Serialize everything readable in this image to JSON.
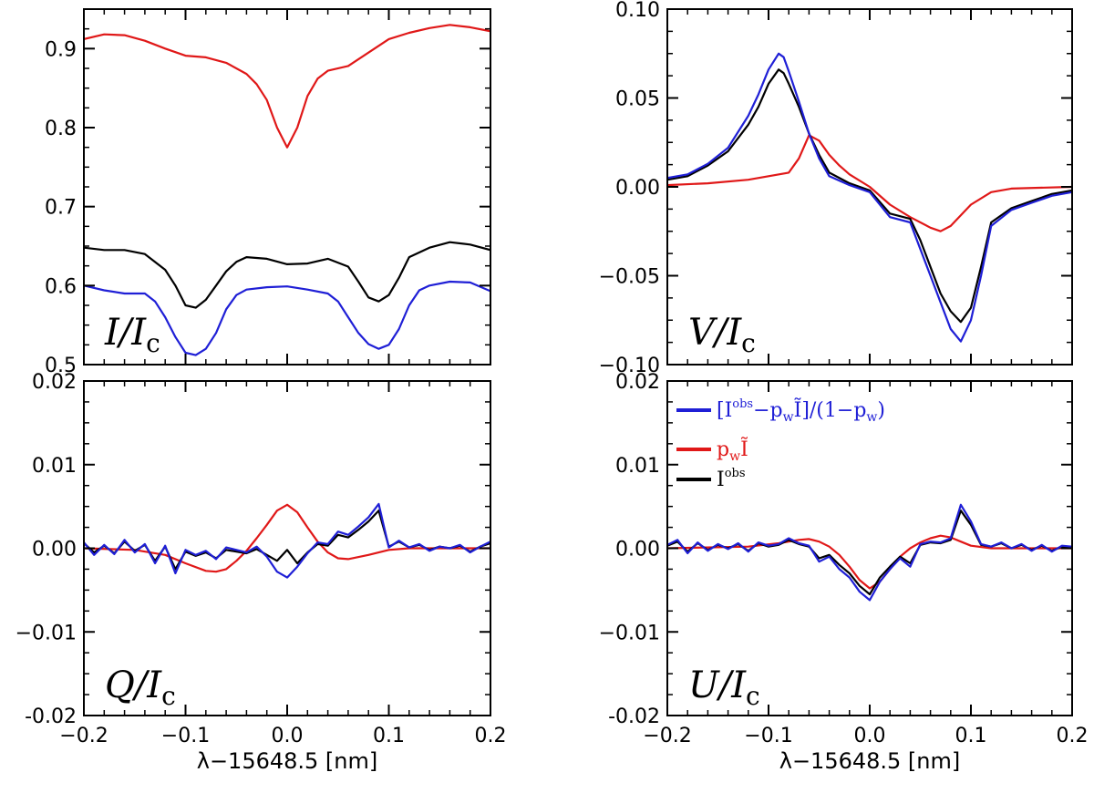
{
  "colors": {
    "blue": "#1f1fd6",
    "red": "#e01818",
    "black": "#000000"
  },
  "xlabel": "λ−15648.5 [nm]",
  "legend": [
    {
      "label": "[Iobs−pwĨ]/(1−pw)",
      "parts": [
        "[I",
        "obs",
        "−p",
        "w",
        "Ĩ]/(1−p",
        "w",
        ")"
      ],
      "color": "#1f1fd6"
    },
    {
      "label": "pwĨ",
      "parts": [
        "p",
        "w",
        "Ĩ"
      ],
      "color": "#e01818"
    },
    {
      "label": "Iobs",
      "parts": [
        "I",
        "obs"
      ],
      "color": "#000000"
    }
  ],
  "chart_data": [
    {
      "id": "I",
      "type": "line",
      "label": "I/Ic",
      "label_main": "I/I",
      "label_sub": "c",
      "xlim": [
        -0.2,
        0.2
      ],
      "ylim": [
        0.5,
        0.95
      ],
      "xticks": [
        -0.2,
        -0.1,
        0.0,
        0.1,
        0.2
      ],
      "xtick_labels": [
        "−0.2",
        "−0.1",
        "0.0",
        "0.1",
        "0.2"
      ],
      "yticks": [
        0.5,
        0.6,
        0.7,
        0.8,
        0.9
      ],
      "ytick_labels": [
        "0.5",
        "0.6",
        "0.7",
        "0.8",
        "0.9"
      ],
      "series": [
        {
          "name": "pwĨ",
          "color": "#e01818",
          "x": [
            -0.2,
            -0.18,
            -0.16,
            -0.14,
            -0.12,
            -0.1,
            -0.08,
            -0.06,
            -0.04,
            -0.03,
            -0.02,
            -0.01,
            0.0,
            0.01,
            0.02,
            0.03,
            0.04,
            0.06,
            0.08,
            0.1,
            0.12,
            0.14,
            0.16,
            0.18,
            0.2
          ],
          "y": [
            0.912,
            0.918,
            0.917,
            0.91,
            0.9,
            0.891,
            0.889,
            0.882,
            0.868,
            0.855,
            0.835,
            0.8,
            0.775,
            0.8,
            0.84,
            0.862,
            0.872,
            0.878,
            0.895,
            0.912,
            0.92,
            0.926,
            0.93,
            0.927,
            0.922
          ]
        },
        {
          "name": "Iobs",
          "color": "#000000",
          "x": [
            -0.2,
            -0.18,
            -0.16,
            -0.14,
            -0.12,
            -0.11,
            -0.1,
            -0.09,
            -0.08,
            -0.07,
            -0.06,
            -0.05,
            -0.04,
            -0.02,
            0.0,
            0.02,
            0.04,
            0.06,
            0.07,
            0.08,
            0.09,
            0.1,
            0.11,
            0.12,
            0.14,
            0.16,
            0.18,
            0.2
          ],
          "y": [
            0.648,
            0.645,
            0.645,
            0.64,
            0.62,
            0.6,
            0.575,
            0.572,
            0.582,
            0.6,
            0.618,
            0.63,
            0.636,
            0.634,
            0.627,
            0.628,
            0.634,
            0.624,
            0.605,
            0.585,
            0.58,
            0.588,
            0.61,
            0.636,
            0.648,
            0.655,
            0.652,
            0.645
          ]
        },
        {
          "name": "[Iobs−pwĨ]/(1−pw)",
          "color": "#1f1fd6",
          "x": [
            -0.2,
            -0.18,
            -0.16,
            -0.14,
            -0.13,
            -0.12,
            -0.11,
            -0.1,
            -0.09,
            -0.08,
            -0.07,
            -0.06,
            -0.05,
            -0.04,
            -0.02,
            0.0,
            0.02,
            0.04,
            0.05,
            0.06,
            0.07,
            0.08,
            0.09,
            0.1,
            0.11,
            0.12,
            0.13,
            0.14,
            0.16,
            0.18,
            0.2
          ],
          "y": [
            0.6,
            0.594,
            0.59,
            0.59,
            0.58,
            0.56,
            0.535,
            0.515,
            0.512,
            0.52,
            0.54,
            0.57,
            0.588,
            0.595,
            0.598,
            0.599,
            0.595,
            0.59,
            0.58,
            0.56,
            0.54,
            0.526,
            0.52,
            0.525,
            0.545,
            0.575,
            0.594,
            0.6,
            0.605,
            0.604,
            0.593
          ]
        }
      ]
    },
    {
      "id": "V",
      "type": "line",
      "label": "V/Ic",
      "label_main": "V/I",
      "label_sub": "c",
      "xlim": [
        -0.2,
        0.2
      ],
      "ylim": [
        -0.1,
        0.1
      ],
      "xticks": [
        -0.2,
        -0.1,
        0.0,
        0.1,
        0.2
      ],
      "xtick_labels": [
        "−0.2",
        "−0.1",
        "0.0",
        "0.1",
        "0.2"
      ],
      "yticks": [
        -0.1,
        -0.05,
        0.0,
        0.05,
        0.1
      ],
      "ytick_labels": [
        "−0.10",
        "−0.05",
        "0.00",
        "0.05",
        "0.10"
      ],
      "series": [
        {
          "name": "pwĨ",
          "color": "#e01818",
          "x": [
            -0.2,
            -0.16,
            -0.12,
            -0.1,
            -0.08,
            -0.07,
            -0.06,
            -0.05,
            -0.04,
            -0.03,
            -0.02,
            0.0,
            0.02,
            0.04,
            0.06,
            0.07,
            0.08,
            0.1,
            0.12,
            0.14,
            0.2
          ],
          "y": [
            0.001,
            0.002,
            0.004,
            0.006,
            0.008,
            0.016,
            0.029,
            0.026,
            0.018,
            0.012,
            0.007,
            0.0,
            -0.01,
            -0.017,
            -0.023,
            -0.025,
            -0.022,
            -0.01,
            -0.003,
            -0.001,
            0.0
          ]
        },
        {
          "name": "Iobs",
          "color": "#000000",
          "x": [
            -0.2,
            -0.18,
            -0.16,
            -0.14,
            -0.12,
            -0.11,
            -0.1,
            -0.09,
            -0.085,
            -0.08,
            -0.07,
            -0.06,
            -0.05,
            -0.04,
            -0.02,
            0.0,
            0.02,
            0.04,
            0.05,
            0.06,
            0.07,
            0.08,
            0.09,
            0.1,
            0.11,
            0.12,
            0.14,
            0.16,
            0.18,
            0.2
          ],
          "y": [
            0.004,
            0.006,
            0.012,
            0.02,
            0.035,
            0.045,
            0.058,
            0.066,
            0.064,
            0.058,
            0.045,
            0.03,
            0.018,
            0.008,
            0.002,
            -0.002,
            -0.015,
            -0.018,
            -0.03,
            -0.045,
            -0.06,
            -0.07,
            -0.076,
            -0.068,
            -0.045,
            -0.02,
            -0.012,
            -0.008,
            -0.004,
            -0.002
          ]
        },
        {
          "name": "[Iobs−pwĨ]/(1−pw)",
          "color": "#1f1fd6",
          "x": [
            -0.2,
            -0.18,
            -0.16,
            -0.14,
            -0.12,
            -0.11,
            -0.1,
            -0.09,
            -0.085,
            -0.08,
            -0.07,
            -0.06,
            -0.05,
            -0.04,
            -0.02,
            0.0,
            0.02,
            0.04,
            0.05,
            0.06,
            0.07,
            0.08,
            0.09,
            0.1,
            0.11,
            0.12,
            0.14,
            0.16,
            0.18,
            0.2
          ],
          "y": [
            0.005,
            0.007,
            0.013,
            0.022,
            0.04,
            0.052,
            0.066,
            0.075,
            0.073,
            0.065,
            0.048,
            0.03,
            0.016,
            0.006,
            0.001,
            -0.003,
            -0.017,
            -0.02,
            -0.035,
            -0.05,
            -0.065,
            -0.08,
            -0.087,
            -0.075,
            -0.05,
            -0.022,
            -0.013,
            -0.009,
            -0.005,
            -0.003
          ]
        }
      ]
    },
    {
      "id": "Q",
      "type": "line",
      "label": "Q/Ic",
      "label_main": "Q/I",
      "label_sub": "c",
      "xlim": [
        -0.2,
        0.2
      ],
      "ylim": [
        -0.02,
        0.02
      ],
      "xticks": [
        -0.2,
        -0.1,
        0.0,
        0.1,
        0.2
      ],
      "xtick_labels": [
        "−0.2",
        "−0.1",
        "0.0",
        "0.1",
        "0.2"
      ],
      "yticks": [
        -0.02,
        -0.01,
        0.0,
        0.01,
        0.02
      ],
      "ytick_labels": [
        "-0.02",
        "−0.01",
        "0.00",
        "0.01",
        "0.02"
      ],
      "series": [
        {
          "name": "pwĨ",
          "color": "#e01818",
          "x": [
            -0.2,
            -0.15,
            -0.12,
            -0.1,
            -0.08,
            -0.07,
            -0.06,
            -0.05,
            -0.04,
            -0.03,
            -0.02,
            -0.01,
            0.0,
            0.01,
            0.02,
            0.03,
            0.04,
            0.05,
            0.06,
            0.08,
            0.1,
            0.12,
            0.15,
            0.2
          ],
          "y": [
            0.0,
            -0.0002,
            -0.0008,
            -0.0018,
            -0.0027,
            -0.0028,
            -0.0025,
            -0.0015,
            -0.0003,
            0.0012,
            0.0028,
            0.0045,
            0.0052,
            0.0043,
            0.0025,
            0.0008,
            -0.0005,
            -0.0012,
            -0.0013,
            -0.0008,
            -0.0002,
            0.0,
            0.0,
            0.0
          ]
        },
        {
          "name": "Iobs",
          "color": "#000000",
          "x": [
            -0.2,
            -0.19,
            -0.18,
            -0.17,
            -0.16,
            -0.15,
            -0.14,
            -0.13,
            -0.12,
            -0.11,
            -0.1,
            -0.09,
            -0.08,
            -0.07,
            -0.06,
            -0.05,
            -0.04,
            -0.03,
            -0.02,
            -0.01,
            0.0,
            0.01,
            0.02,
            0.03,
            0.04,
            0.05,
            0.06,
            0.07,
            0.08,
            0.09,
            0.1,
            0.11,
            0.12,
            0.13,
            0.14,
            0.15,
            0.16,
            0.17,
            0.18,
            0.19,
            0.2
          ],
          "y": [
            0.0006,
            -0.0005,
            0.0003,
            -0.0006,
            0.0008,
            -0.0003,
            0.0004,
            -0.0015,
            0.0002,
            -0.0025,
            -0.0004,
            -0.0009,
            -0.0005,
            -0.0012,
            -0.0002,
            -0.0004,
            -0.0006,
            -0.0001,
            -0.0008,
            -0.0015,
            -0.0002,
            -0.0018,
            -0.0005,
            0.0005,
            0.0003,
            0.0016,
            0.0013,
            0.0022,
            0.0032,
            0.0045,
            0.0002,
            0.0008,
            0.0001,
            0.0004,
            -0.0002,
            0.0002,
            0.0,
            0.0003,
            -0.0004,
            0.0002,
            0.0006
          ]
        },
        {
          "name": "[Iobs−pwĨ]/(1−pw)",
          "color": "#1f1fd6",
          "x": [
            -0.2,
            -0.19,
            -0.18,
            -0.17,
            -0.16,
            -0.15,
            -0.14,
            -0.13,
            -0.12,
            -0.11,
            -0.1,
            -0.09,
            -0.08,
            -0.07,
            -0.06,
            -0.05,
            -0.04,
            -0.03,
            -0.02,
            -0.01,
            0.0,
            0.01,
            0.02,
            0.03,
            0.04,
            0.05,
            0.06,
            0.07,
            0.08,
            0.09,
            0.1,
            0.11,
            0.12,
            0.13,
            0.14,
            0.15,
            0.16,
            0.17,
            0.18,
            0.19,
            0.2
          ],
          "y": [
            0.0007,
            -0.0008,
            0.0004,
            -0.0007,
            0.001,
            -0.0005,
            0.0005,
            -0.0018,
            0.0003,
            -0.003,
            -0.0002,
            -0.0008,
            -0.0003,
            -0.0013,
            0.0001,
            -0.0002,
            -0.0005,
            0.0002,
            -0.001,
            -0.0028,
            -0.0035,
            -0.0022,
            -0.0006,
            0.0007,
            0.0005,
            0.002,
            0.0016,
            0.0026,
            0.0037,
            0.0053,
            0.0001,
            0.0009,
            0.0001,
            0.0005,
            -0.0003,
            0.0002,
            0.0,
            0.0004,
            -0.0005,
            0.0002,
            0.0008
          ]
        }
      ]
    },
    {
      "id": "U",
      "type": "line",
      "label": "U/Ic",
      "label_main": "U/I",
      "label_sub": "c",
      "xlim": [
        -0.2,
        0.2
      ],
      "ylim": [
        -0.02,
        0.02
      ],
      "xticks": [
        -0.2,
        -0.1,
        0.0,
        0.1,
        0.2
      ],
      "xtick_labels": [
        "−0.2",
        "−0.1",
        "0.0",
        "0.1",
        "0.2"
      ],
      "yticks": [
        -0.02,
        -0.01,
        0.0,
        0.01,
        0.02
      ],
      "ytick_labels": [
        "-0.02",
        "−0.01",
        "0.00",
        "0.01",
        "0.02"
      ],
      "series": [
        {
          "name": "pwĨ",
          "color": "#e01818",
          "x": [
            -0.2,
            -0.12,
            -0.09,
            -0.07,
            -0.06,
            -0.05,
            -0.04,
            -0.03,
            -0.02,
            -0.01,
            0.0,
            0.01,
            0.02,
            0.03,
            0.04,
            0.05,
            0.06,
            0.07,
            0.08,
            0.09,
            0.1,
            0.12,
            0.2
          ],
          "y": [
            0.0,
            0.0002,
            0.0006,
            0.001,
            0.0011,
            0.0008,
            0.0002,
            -0.0008,
            -0.0022,
            -0.0038,
            -0.0048,
            -0.004,
            -0.0025,
            -0.001,
            0.0,
            0.0007,
            0.0012,
            0.0015,
            0.0013,
            0.0008,
            0.0003,
            0.0,
            0.0
          ]
        },
        {
          "name": "Iobs",
          "color": "#000000",
          "x": [
            -0.2,
            -0.19,
            -0.18,
            -0.17,
            -0.16,
            -0.15,
            -0.14,
            -0.13,
            -0.12,
            -0.11,
            -0.1,
            -0.09,
            -0.08,
            -0.07,
            -0.06,
            -0.05,
            -0.04,
            -0.03,
            -0.02,
            -0.01,
            0.0,
            0.01,
            0.02,
            0.03,
            0.04,
            0.05,
            0.06,
            0.07,
            0.08,
            0.09,
            0.1,
            0.11,
            0.12,
            0.13,
            0.14,
            0.15,
            0.16,
            0.17,
            0.18,
            0.19,
            0.2
          ],
          "y": [
            0.0003,
            0.0008,
            -0.0004,
            0.0006,
            -0.0002,
            0.0004,
            0.0,
            0.0005,
            -0.0003,
            0.0006,
            0.0002,
            0.0004,
            0.001,
            0.0005,
            0.0002,
            -0.0012,
            -0.0008,
            -0.002,
            -0.003,
            -0.0045,
            -0.0055,
            -0.0035,
            -0.0022,
            -0.001,
            -0.0018,
            0.0004,
            0.0007,
            0.0006,
            0.001,
            0.0045,
            0.0028,
            0.0004,
            0.0002,
            0.0006,
            0.0,
            0.0004,
            -0.0002,
            0.0003,
            -0.0003,
            0.0002,
            0.0001
          ]
        },
        {
          "name": "[Iobs−pwĨ]/(1−pw)",
          "color": "#1f1fd6",
          "x": [
            -0.2,
            -0.19,
            -0.18,
            -0.17,
            -0.16,
            -0.15,
            -0.14,
            -0.13,
            -0.12,
            -0.11,
            -0.1,
            -0.09,
            -0.08,
            -0.07,
            -0.06,
            -0.05,
            -0.04,
            -0.03,
            -0.02,
            -0.01,
            0.0,
            0.01,
            0.02,
            0.03,
            0.04,
            0.05,
            0.06,
            0.07,
            0.08,
            0.09,
            0.1,
            0.11,
            0.12,
            0.13,
            0.14,
            0.15,
            0.16,
            0.17,
            0.18,
            0.19,
            0.2
          ],
          "y": [
            0.0004,
            0.001,
            -0.0006,
            0.0007,
            -0.0003,
            0.0005,
            -0.0001,
            0.0006,
            -0.0004,
            0.0007,
            0.0003,
            0.0005,
            0.0012,
            0.0006,
            0.0003,
            -0.0016,
            -0.001,
            -0.0025,
            -0.0035,
            -0.0052,
            -0.0062,
            -0.004,
            -0.0025,
            -0.0012,
            -0.0022,
            0.0005,
            0.0008,
            0.0007,
            0.0012,
            0.0052,
            0.0032,
            0.0005,
            0.0002,
            0.0007,
            0.0,
            0.0005,
            -0.0003,
            0.0004,
            -0.0004,
            0.0003,
            0.0002
          ]
        }
      ]
    }
  ]
}
